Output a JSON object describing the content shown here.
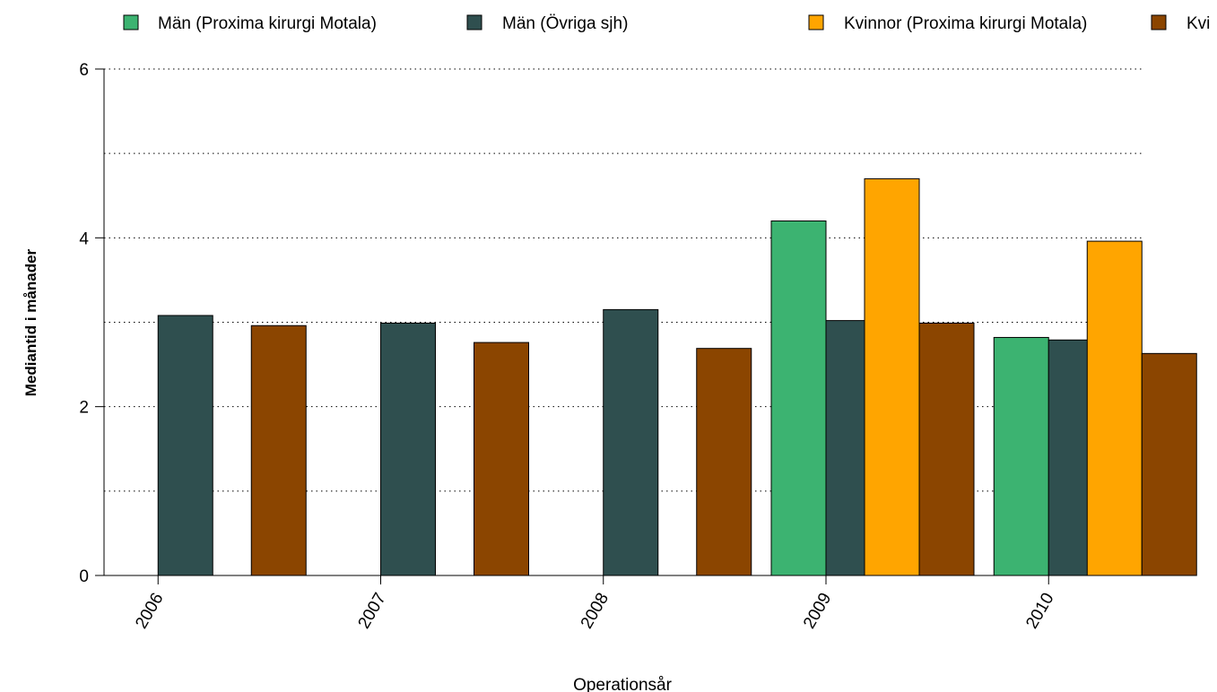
{
  "chart_data": {
    "type": "bar",
    "title": "",
    "xlabel": "Operationsår",
    "ylabel": "Mediantid i månader",
    "categories": [
      "2006",
      "2007",
      "2008",
      "2009",
      "2010"
    ],
    "ylim": [
      0,
      6
    ],
    "yticks": [
      0,
      2,
      4,
      6
    ],
    "grid_lines": [
      1,
      2,
      3,
      4,
      5,
      6
    ],
    "grid": "dotted horizontal",
    "legend_position": "top",
    "series": [
      {
        "name": "Män (Proxima kirurgi Motala)",
        "color": "#3CB371",
        "values": [
          null,
          null,
          null,
          4.2,
          2.82
        ]
      },
      {
        "name": "Män (Övriga sjh)",
        "color": "#2F4F4F",
        "values": [
          3.08,
          2.99,
          3.15,
          3.02,
          2.79
        ]
      },
      {
        "name": "Kvinnor (Proxima kirurgi Motala)",
        "color": "#FFA500",
        "values": [
          null,
          null,
          null,
          4.7,
          3.96
        ]
      },
      {
        "name": "Kvi",
        "color": "#8B4500",
        "values": [
          2.96,
          2.76,
          2.69,
          2.99,
          2.63
        ]
      }
    ]
  }
}
